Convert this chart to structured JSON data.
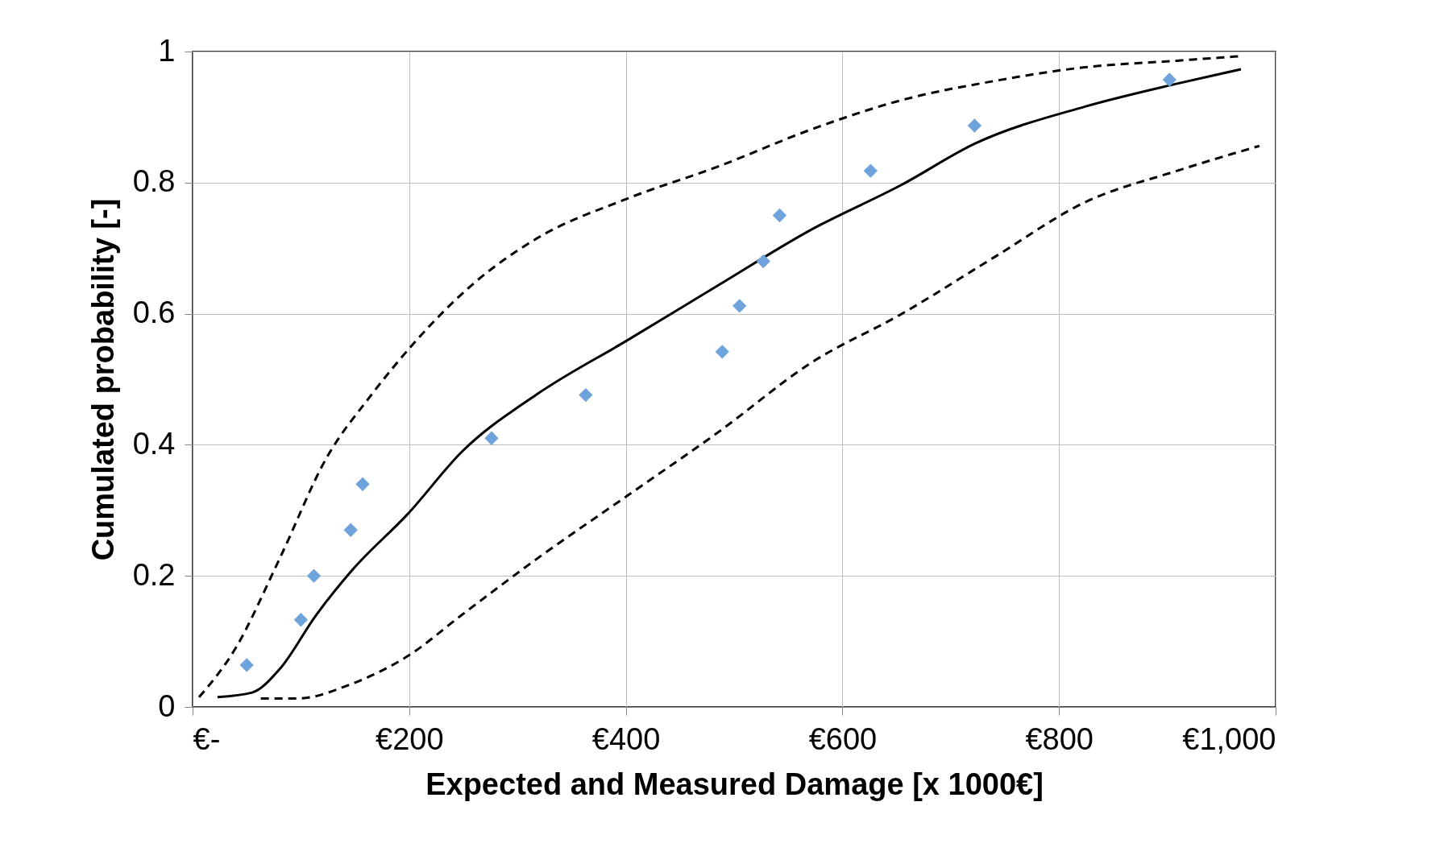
{
  "chart_data": {
    "type": "line",
    "xlabel": "Expected and Measured Damage [x 1000€]",
    "ylabel": "Cumulated probability [-]",
    "xlim": [
      0,
      1000
    ],
    "xticks": [
      {
        "value": 0,
        "label": "€-"
      },
      {
        "value": 200,
        "label": "€200"
      },
      {
        "value": 400,
        "label": "€400"
      },
      {
        "value": 600,
        "label": "€600"
      },
      {
        "value": 800,
        "label": "€800"
      },
      {
        "value": 1000,
        "label": "€1,000"
      }
    ],
    "ylim": [
      0,
      1
    ],
    "yticks": [
      0,
      0.2,
      0.4,
      0.6,
      0.8,
      1
    ],
    "grid": true,
    "series": [
      {
        "color": "#000000",
        "line_style": "solid",
        "x": [
          23,
          55,
          80,
          114,
          148,
          199,
          249,
          317,
          402,
          486,
          571,
          655,
          723,
          824,
          909,
          968
        ],
        "values": [
          0.015,
          0.022,
          0.057,
          0.14,
          0.21,
          0.295,
          0.39,
          0.476,
          0.56,
          0.644,
          0.728,
          0.797,
          0.86,
          0.916,
          0.951,
          0.973
        ]
      },
      {
        "color": "#000000",
        "line_style": "dashed",
        "x": [
          6,
          38,
          80,
          123,
          165,
          207,
          258,
          317,
          402,
          486,
          571,
          655,
          740,
          824,
          909,
          968
        ],
        "values": [
          0.015,
          0.085,
          0.225,
          0.378,
          0.476,
          0.56,
          0.644,
          0.714,
          0.776,
          0.825,
          0.881,
          0.926,
          0.955,
          0.976,
          0.986,
          0.993
        ]
      },
      {
        "color": "#000000",
        "line_style": "dashed",
        "x": [
          63,
          97,
          148,
          199,
          249,
          317,
          402,
          486,
          571,
          655,
          740,
          824,
          909,
          985
        ],
        "values": [
          0.013,
          0.013,
          0.036,
          0.078,
          0.141,
          0.225,
          0.323,
          0.42,
          0.525,
          0.6,
          0.686,
          0.77,
          0.818,
          0.856
        ]
      },
      {
        "type": "scatter",
        "color": "#6fa3dc",
        "marker": "diamond",
        "x": [
          50,
          100,
          112,
          146,
          157,
          276,
          363,
          489,
          505,
          527,
          542,
          626,
          722,
          902
        ],
        "values": [
          0.064,
          0.133,
          0.2,
          0.27,
          0.34,
          0.41,
          0.476,
          0.542,
          0.612,
          0.68,
          0.75,
          0.818,
          0.887,
          0.957
        ]
      }
    ]
  }
}
